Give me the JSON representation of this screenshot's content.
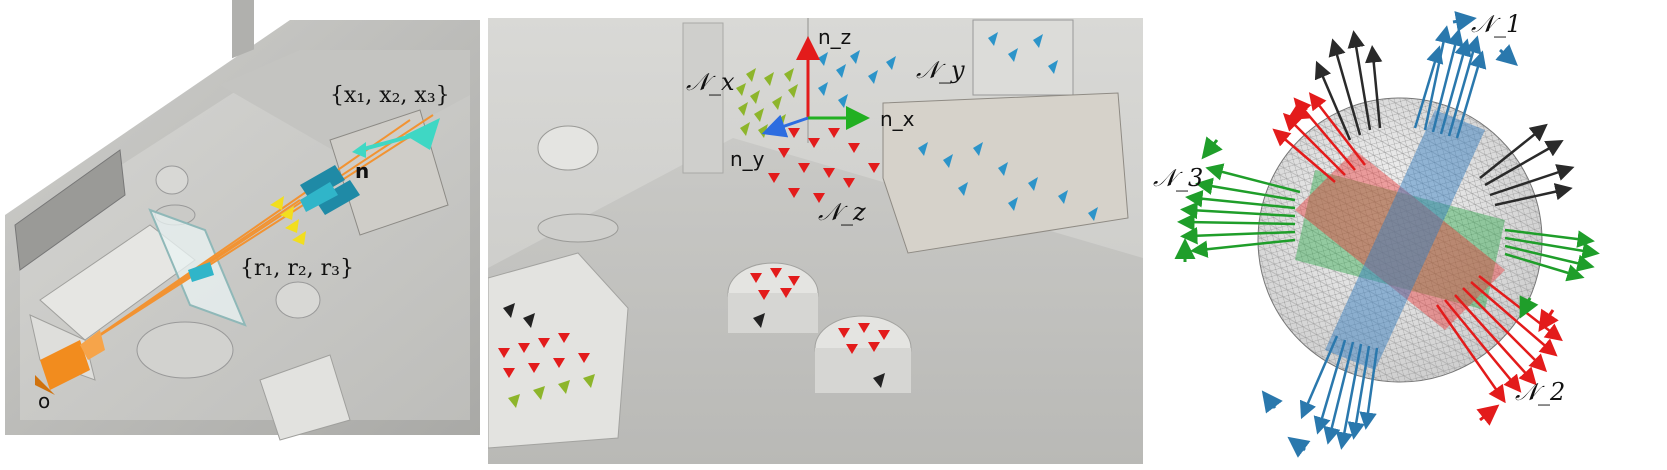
{
  "left_panel": {
    "label_points": "{x₁, x₂, x₃}",
    "label_rays": "{r₁, r₂, r₃}",
    "label_normal": "n",
    "label_origin": "o"
  },
  "middle_panel": {
    "axis_nz": "n_z",
    "axis_nx": "n_x",
    "axis_ny": "n_y",
    "set_nx": "𝒩_x",
    "set_ny": "𝒩_y",
    "set_nz": "𝒩_z"
  },
  "right_panel": {
    "set_n1": "𝒩_1",
    "set_n2": "𝒩_2",
    "set_n3": "𝒩_3"
  },
  "colors": {
    "red": "#e31b1b",
    "green": "#22a022",
    "blue": "#2e7fb8",
    "orange": "#f28c1e",
    "teal": "#1e8fa8"
  }
}
